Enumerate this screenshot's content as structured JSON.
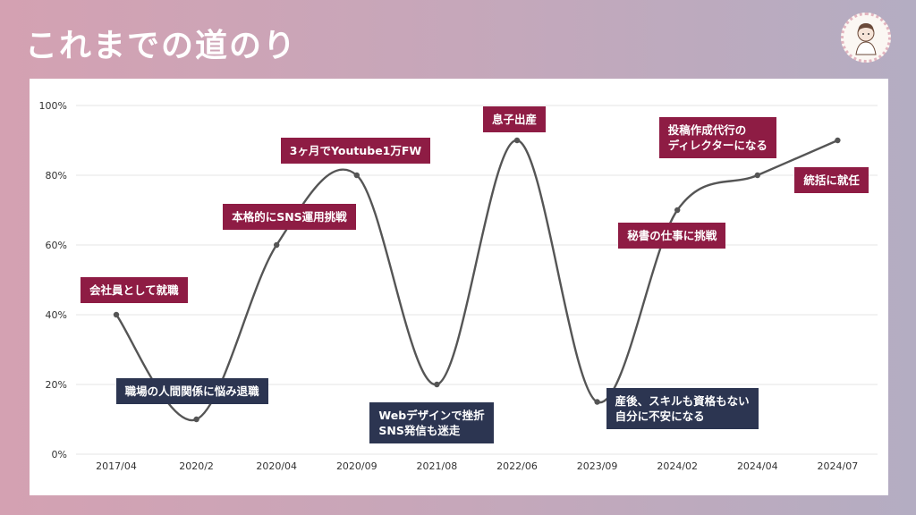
{
  "header": {
    "title": "これまでの道のり"
  },
  "colors": {
    "up_callout": "#8e1c44",
    "down_callout": "#2c3551",
    "line": "#555555",
    "grid": "#e6e6e6"
  },
  "chart_data": {
    "type": "line",
    "categories": [
      "2017/04",
      "2020/2",
      "2020/04",
      "2020/09",
      "2021/08",
      "2022/06",
      "2023/09",
      "2024/02",
      "2024/04",
      "2024/07"
    ],
    "values": [
      40,
      10,
      60,
      80,
      20,
      90,
      15,
      70,
      80,
      90
    ],
    "ylim": [
      0,
      100
    ],
    "yticks": [
      "0%",
      "20%",
      "40%",
      "60%",
      "80%",
      "100%"
    ],
    "grid": true,
    "smooth": true,
    "annotations": [
      {
        "text": "会社員として就職",
        "tone": "up",
        "category": "2017/04"
      },
      {
        "text": "職場の人間関係に悩み退職",
        "tone": "down",
        "category": "2020/2"
      },
      {
        "text": "本格的にSNS運用挑戦",
        "tone": "up",
        "category": "2020/04"
      },
      {
        "text": "3ヶ月でYoutube1万FW",
        "tone": "up",
        "category": "2020/09"
      },
      {
        "text": "Webデザインで挫折\nSNS発信も迷走",
        "tone": "down",
        "category": "2021/08"
      },
      {
        "text": "息子出産",
        "tone": "up",
        "category": "2022/06"
      },
      {
        "text": "産後、スキルも資格もない\n自分に不安になる",
        "tone": "down",
        "category": "2023/09"
      },
      {
        "text": "秘書の仕事に挑戦",
        "tone": "up",
        "category": "2024/02"
      },
      {
        "text": "投稿作成代行の\nディレクターになる",
        "tone": "up",
        "category": "2024/04"
      },
      {
        "text": "統括に就任",
        "tone": "up",
        "category": "2024/07"
      }
    ]
  }
}
